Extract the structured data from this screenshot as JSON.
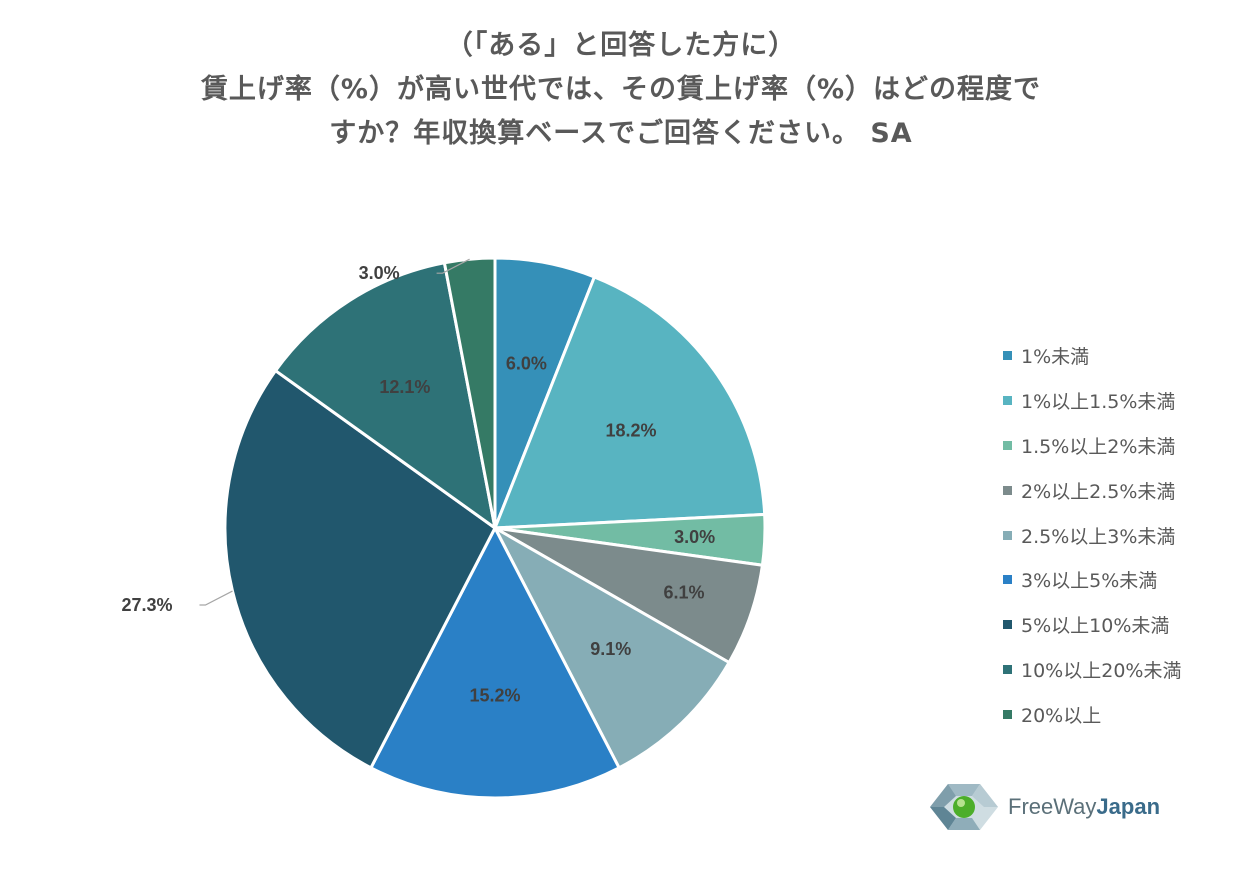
{
  "chart_data": {
    "type": "pie",
    "title_lines": [
      "（「ある」と回答した方に）",
      "賃上げ率（%）が高い世代では、その賃上げ率（%）はどの程度で",
      "すか？年収換算ベースでご回答ください。 SA"
    ],
    "categories": [
      "1%未満",
      "1%以上1.5%未満",
      "1.5%以上2%未満",
      "2%以上2.5%未満",
      "2.5%以上3%未満",
      "3%以上5%未満",
      "5%以上10%未満",
      "10%以上20%未満",
      "20%以上"
    ],
    "values": [
      6.0,
      18.2,
      3.0,
      6.1,
      9.1,
      15.2,
      27.3,
      12.1,
      3.0
    ],
    "value_labels": [
      "6.0%",
      "18.2%",
      "3.0%",
      "6.1%",
      "9.1%",
      "15.2%",
      "27.3%",
      "12.1%",
      "3.0%"
    ],
    "colors": [
      "#3590b8",
      "#58b4c1",
      "#72bca4",
      "#7c8b8c",
      "#86adb6",
      "#2a80c6",
      "#21576d",
      "#2e7277",
      "#357a65"
    ],
    "label_color": "#404040",
    "legend_position": "right"
  },
  "logo": {
    "text_regular": "FreeWay",
    "text_bold": "Japan"
  }
}
